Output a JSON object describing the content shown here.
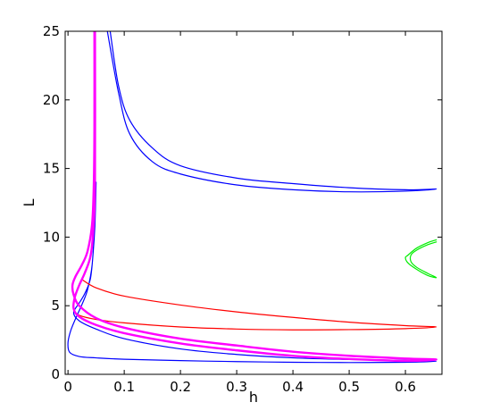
{
  "chart_data": {
    "type": "line",
    "title": "",
    "xlabel": "h",
    "ylabel": "L",
    "xlim": [
      -0.005,
      0.665
    ],
    "ylim": [
      0,
      25
    ],
    "xticks": [
      0,
      0.1,
      0.2,
      0.3,
      0.4,
      0.5,
      0.6
    ],
    "xtick_labels": [
      "0",
      "0.1",
      "0.2",
      "0.3",
      "0.4",
      "0.5",
      "0.6"
    ],
    "yticks": [
      0,
      5,
      10,
      15,
      20,
      25
    ],
    "ytick_labels": [
      "0",
      "5",
      "10",
      "15",
      "20",
      "25"
    ],
    "grid": false,
    "legend": "none",
    "series": [
      {
        "color": "#0000ff",
        "points": [
          [
            0.075,
            25
          ],
          [
            0.09,
            21
          ],
          [
            0.11,
            18.5
          ],
          [
            0.15,
            16.5
          ],
          [
            0.2,
            15.2
          ],
          [
            0.3,
            14.3
          ],
          [
            0.4,
            13.9
          ],
          [
            0.5,
            13.6
          ],
          [
            0.6,
            13.45
          ],
          [
            0.655,
            13.5
          ],
          [
            0.6,
            13.35
          ],
          [
            0.5,
            13.3
          ],
          [
            0.4,
            13.45
          ],
          [
            0.3,
            13.8
          ],
          [
            0.2,
            14.6
          ],
          [
            0.15,
            15.5
          ],
          [
            0.11,
            17.5
          ],
          [
            0.09,
            20.5
          ],
          [
            0.07,
            25
          ]
        ]
      },
      {
        "color": "#0000ff",
        "points": [
          [
            0.048,
            14
          ],
          [
            0.047,
            11
          ],
          [
            0.043,
            8
          ],
          [
            0.035,
            6.2
          ],
          [
            0.025,
            5.1
          ],
          [
            0.015,
            4.2
          ],
          [
            0.005,
            3.2
          ],
          [
            0.0,
            2.3
          ],
          [
            0.003,
            1.6
          ],
          [
            0.02,
            1.3
          ],
          [
            0.05,
            1.2
          ],
          [
            0.1,
            1.1
          ],
          [
            0.2,
            1.0
          ],
          [
            0.3,
            0.93
          ],
          [
            0.4,
            0.88
          ],
          [
            0.5,
            0.86
          ],
          [
            0.6,
            0.88
          ],
          [
            0.655,
            0.95
          ],
          [
            0.6,
            1.02
          ],
          [
            0.5,
            1.08
          ],
          [
            0.4,
            1.2
          ],
          [
            0.3,
            1.45
          ],
          [
            0.2,
            1.85
          ],
          [
            0.1,
            2.6
          ],
          [
            0.05,
            3.3
          ],
          [
            0.02,
            3.9
          ],
          [
            0.01,
            4.5
          ],
          [
            0.02,
            5.2
          ],
          [
            0.03,
            5.9
          ],
          [
            0.04,
            7
          ],
          [
            0.045,
            9
          ],
          [
            0.048,
            11
          ],
          [
            0.05,
            14
          ]
        ]
      },
      {
        "color": "#ff0000",
        "points": [
          [
            0.025,
            6.9
          ],
          [
            0.05,
            6.3
          ],
          [
            0.1,
            5.7
          ],
          [
            0.2,
            5.05
          ],
          [
            0.3,
            4.55
          ],
          [
            0.4,
            4.15
          ],
          [
            0.5,
            3.8
          ],
          [
            0.6,
            3.55
          ],
          [
            0.655,
            3.45
          ],
          [
            0.6,
            3.33
          ],
          [
            0.5,
            3.26
          ],
          [
            0.4,
            3.24
          ],
          [
            0.3,
            3.3
          ],
          [
            0.2,
            3.45
          ],
          [
            0.1,
            3.75
          ],
          [
            0.05,
            4.0
          ],
          [
            0.02,
            4.3
          ],
          [
            0.01,
            4.7
          ]
        ]
      },
      {
        "color": "#ff00ff",
        "points": [
          [
            0.047,
            25
          ],
          [
            0.047,
            18
          ],
          [
            0.046,
            14
          ],
          [
            0.043,
            11
          ],
          [
            0.035,
            9
          ],
          [
            0.025,
            8
          ],
          [
            0.013,
            7.1
          ],
          [
            0.008,
            6.5
          ],
          [
            0.01,
            5.8
          ],
          [
            0.02,
            5.0
          ],
          [
            0.05,
            4.1
          ],
          [
            0.1,
            3.4
          ],
          [
            0.2,
            2.6
          ],
          [
            0.3,
            2.1
          ],
          [
            0.4,
            1.65
          ],
          [
            0.5,
            1.35
          ],
          [
            0.6,
            1.15
          ],
          [
            0.655,
            1.08
          ],
          [
            0.6,
            0.98
          ],
          [
            0.5,
            1.12
          ],
          [
            0.4,
            1.35
          ],
          [
            0.3,
            1.75
          ],
          [
            0.2,
            2.25
          ],
          [
            0.1,
            3.0
          ],
          [
            0.05,
            3.6
          ],
          [
            0.02,
            4.2
          ],
          [
            0.01,
            4.8
          ],
          [
            0.012,
            5.6
          ],
          [
            0.02,
            6.5
          ],
          [
            0.03,
            7.4
          ],
          [
            0.04,
            8.6
          ],
          [
            0.045,
            10.5
          ],
          [
            0.048,
            14
          ],
          [
            0.048,
            25
          ]
        ]
      },
      {
        "color": "#00ee00",
        "points": [
          [
            0.655,
            9.8
          ],
          [
            0.64,
            9.6
          ],
          [
            0.62,
            9.2
          ],
          [
            0.605,
            8.7
          ],
          [
            0.6,
            8.5
          ],
          [
            0.605,
            8.1
          ],
          [
            0.62,
            7.65
          ],
          [
            0.64,
            7.2
          ],
          [
            0.655,
            7.05
          ],
          [
            0.64,
            7.35
          ],
          [
            0.62,
            7.8
          ],
          [
            0.61,
            8.2
          ],
          [
            0.61,
            8.7
          ],
          [
            0.62,
            9.05
          ],
          [
            0.64,
            9.45
          ],
          [
            0.655,
            9.65
          ]
        ]
      }
    ]
  }
}
